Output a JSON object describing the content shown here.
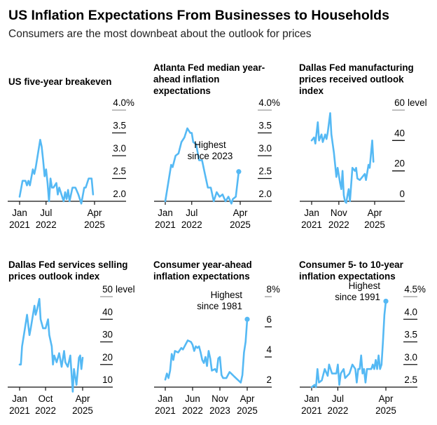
{
  "title": "US Inflation Expectations From Businesses to Households",
  "subtitle": "Consumers are the most downbeat about the outlook for prices",
  "line_color": "#55b9f4",
  "chart_data": [
    {
      "type": "line",
      "title_lines": [
        "US five-year breakeven"
      ],
      "yticks": [
        "2.0",
        "2.5",
        "3.0",
        "3.5",
        "4.0"
      ],
      "y_unit": "%",
      "ylim": [
        2.0,
        4.0
      ],
      "xticks": [
        {
          "date": "2021-01",
          "l1": "Jan",
          "l2": "2021"
        },
        {
          "date": "2022-07",
          "l1": "Jul",
          "l2": "2022"
        },
        {
          "date": "2025-04",
          "l1": "Apr",
          "l2": "2025"
        }
      ],
      "x": [
        "2021-01",
        "2021-03",
        "2021-05",
        "2021-06",
        "2021-07",
        "2021-08",
        "2021-10",
        "2021-11",
        "2021-12",
        "2022-03",
        "2022-04",
        "2022-05",
        "2022-06",
        "2022-07",
        "2022-08",
        "2022-09",
        "2022-10",
        "2022-11",
        "2022-12",
        "2023-02",
        "2023-03",
        "2023-04",
        "2023-06",
        "2023-07",
        "2023-08",
        "2023-09",
        "2023-10",
        "2023-11",
        "2024-01",
        "2024-03",
        "2024-05",
        "2024-06",
        "2024-07",
        "2024-09",
        "2024-10",
        "2024-11",
        "2024-12",
        "2025-02",
        "2025-03"
      ],
      "y": [
        2.1,
        2.45,
        2.45,
        2.35,
        2.45,
        2.35,
        2.7,
        2.6,
        2.75,
        3.35,
        3.2,
        2.9,
        2.55,
        2.7,
        2.4,
        2.0,
        2.5,
        2.3,
        2.3,
        2.4,
        2.15,
        2.3,
        2.1,
        2.0,
        2.2,
        2.05,
        2.25,
        2.0,
        2.3,
        2.3,
        2.15,
        2.05,
        1.95,
        2.3,
        2.3,
        2.4,
        2.5,
        2.5,
        2.15
      ]
    },
    {
      "type": "line",
      "title_lines": [
        "Atlanta Fed median year-",
        "ahead inflation",
        "expectations"
      ],
      "yticks": [
        "2.0",
        "2.5",
        "3.0",
        "3.5",
        "4.0"
      ],
      "y_unit": "%",
      "ylim": [
        2.0,
        4.0
      ],
      "xticks": [
        {
          "date": "2021-01",
          "l1": "Jan",
          "l2": "2021"
        },
        {
          "date": "2022-07",
          "l1": "Jul",
          "l2": "2022"
        },
        {
          "date": "2025-04",
          "l1": "Apr",
          "l2": "2025"
        }
      ],
      "x": [
        "2021-01",
        "2021-04",
        "2021-05",
        "2021-06",
        "2021-08",
        "2021-10",
        "2021-12",
        "2022-02",
        "2022-04",
        "2022-05",
        "2022-06",
        "2022-07",
        "2022-08",
        "2022-10",
        "2022-12",
        "2023-02",
        "2023-04",
        "2023-06",
        "2023-08",
        "2023-10",
        "2023-12",
        "2024-02",
        "2024-04",
        "2024-06",
        "2024-08",
        "2024-10",
        "2024-11",
        "2025-01",
        "2025-03"
      ],
      "y": [
        2.0,
        2.6,
        2.8,
        2.75,
        3.0,
        3.05,
        3.3,
        3.4,
        3.6,
        3.55,
        3.5,
        3.5,
        3.3,
        3.25,
        2.9,
        2.9,
        2.6,
        2.3,
        2.3,
        2.0,
        2.2,
        2.1,
        2.15,
        2.0,
        2.1,
        1.95,
        2.05,
        2.1,
        2.65
      ],
      "annotation": {
        "lines": [
          "Highest",
          "since 2023"
        ]
      }
    },
    {
      "type": "line",
      "title_lines": [
        "Dallas Fed manufacturing",
        "prices received outlook",
        "index"
      ],
      "yticks": [
        "0",
        "20",
        "40",
        "60"
      ],
      "y_unit": "level",
      "ylim": [
        0,
        60
      ],
      "xticks": [
        {
          "date": "2021-01",
          "l1": "Jan",
          "l2": "2021"
        },
        {
          "date": "2022-11",
          "l1": "Nov",
          "l2": "2022"
        },
        {
          "date": "2025-04",
          "l1": "Apr",
          "l2": "2025"
        }
      ],
      "x": [
        "2021-01",
        "2021-03",
        "2021-04",
        "2021-06",
        "2021-07",
        "2021-09",
        "2021-10",
        "2021-12",
        "2022-01",
        "2022-02",
        "2022-04",
        "2022-05",
        "2022-07",
        "2022-09",
        "2022-10",
        "2022-12",
        "2023-01",
        "2023-02",
        "2023-03",
        "2023-04",
        "2023-05",
        "2023-06",
        "2023-07",
        "2023-08",
        "2023-10",
        "2023-12",
        "2024-01",
        "2024-02",
        "2024-04",
        "2024-06",
        "2024-08",
        "2024-09",
        "2024-11",
        "2024-12",
        "2025-02",
        "2025-03"
      ],
      "y": [
        40,
        42,
        38,
        52,
        40,
        44,
        39,
        44,
        41,
        45,
        58,
        44,
        32,
        16,
        22,
        12,
        8,
        20,
        4,
        0,
        -1,
        4,
        8,
        0,
        22,
        20,
        22,
        15,
        14,
        16,
        18,
        14,
        24,
        22,
        40,
        26
      ]
    },
    {
      "type": "line",
      "title_lines": [
        "Dallas Fed services selling",
        "prices outlook index"
      ],
      "yticks": [
        "10",
        "20",
        "30",
        "40",
        "50"
      ],
      "y_unit": "level",
      "ylim": [
        10,
        50
      ],
      "xticks": [
        {
          "date": "2021-01",
          "l1": "Jan",
          "l2": "2021"
        },
        {
          "date": "2022-10",
          "l1": "Oct",
          "l2": "2022"
        },
        {
          "date": "2025-04",
          "l1": "Apr",
          "l2": "2025"
        }
      ],
      "x": [
        "2021-01",
        "2021-02",
        "2021-03",
        "2021-05",
        "2021-07",
        "2021-09",
        "2021-10",
        "2022-01",
        "2022-02",
        "2022-03",
        "2022-05",
        "2022-06",
        "2022-08",
        "2022-10",
        "2022-12",
        "2023-01",
        "2023-03",
        "2023-04",
        "2023-05",
        "2023-07",
        "2023-09",
        "2023-11",
        "2024-01",
        "2024-02",
        "2024-04",
        "2024-06",
        "2024-08",
        "2024-09",
        "2024-11",
        "2025-01",
        "2025-02",
        "2025-03",
        "2025-04"
      ],
      "y": [
        20,
        20,
        28,
        35,
        42,
        33,
        36,
        46,
        42,
        44,
        49,
        40,
        36,
        36,
        40,
        33,
        28,
        20,
        24,
        21,
        25,
        19,
        26,
        21,
        19,
        24,
        8,
        18,
        11,
        23,
        24,
        18,
        23
      ]
    },
    {
      "type": "line",
      "title_lines": [
        "Consumer year-ahead",
        "inflation expectations"
      ],
      "yticks": [
        "2",
        "4",
        "6",
        "8"
      ],
      "y_unit": "%",
      "ylim": [
        2,
        8
      ],
      "xticks": [
        {
          "date": "2021-01",
          "l1": "Jan",
          "l2": "2021"
        },
        {
          "date": "2022-06",
          "l1": "Jun",
          "l2": "2022"
        },
        {
          "date": "2023-11",
          "l1": "Nov",
          "l2": "2023"
        },
        {
          "date": "2025-04",
          "l1": "Apr",
          "l2": "2025"
        }
      ],
      "x": [
        "2021-01",
        "2021-02",
        "2021-03",
        "2021-04",
        "2021-05",
        "2021-06",
        "2021-07",
        "2021-09",
        "2021-11",
        "2021-12",
        "2022-02",
        "2022-03",
        "2022-05",
        "2022-06",
        "2022-07",
        "2022-08",
        "2022-09",
        "2022-10",
        "2022-11",
        "2022-12",
        "2023-01",
        "2023-02",
        "2023-03",
        "2023-04",
        "2023-05",
        "2023-06",
        "2023-08",
        "2023-09",
        "2023-10",
        "2023-11",
        "2023-12",
        "2024-01",
        "2024-03",
        "2024-05",
        "2024-06",
        "2024-08",
        "2024-10",
        "2024-12",
        "2025-01",
        "2025-02",
        "2025-03",
        "2025-04"
      ],
      "y": [
        2.5,
        2.9,
        2.6,
        3.1,
        4.2,
        3.8,
        4.4,
        4.3,
        4.6,
        4.5,
        4.9,
        5.1,
        5.0,
        4.8,
        4.4,
        4.7,
        4.6,
        4.7,
        4.3,
        3.8,
        3.6,
        4.0,
        3.4,
        4.4,
        3.9,
        3.1,
        3.2,
        3.0,
        3.9,
        4.0,
        2.8,
        2.6,
        2.6,
        3.0,
        2.9,
        2.7,
        2.5,
        2.3,
        2.8,
        4.3,
        5.0,
        6.5
      ],
      "annotation": {
        "lines": [
          "Highest",
          "since 1981"
        ]
      }
    },
    {
      "type": "line",
      "title_lines": [
        "Consumer 5- to 10-year",
        "inflation expectations"
      ],
      "yticks": [
        "2.5",
        "3.0",
        "3.5",
        "4.0",
        "4.5"
      ],
      "y_unit": "%",
      "ylim": [
        2.5,
        4.5
      ],
      "xticks": [
        {
          "date": "2021-01",
          "l1": "Jan",
          "l2": "2021"
        },
        {
          "date": "2022-07",
          "l1": "Jul",
          "l2": "2022"
        },
        {
          "date": "2025-04",
          "l1": "Apr",
          "l2": "2025"
        }
      ],
      "x": [
        "2021-01",
        "2021-03",
        "2021-04",
        "2021-05",
        "2021-06",
        "2021-08",
        "2021-10",
        "2021-12",
        "2022-01",
        "2022-03",
        "2022-06",
        "2022-07",
        "2022-08",
        "2022-09",
        "2022-11",
        "2022-12",
        "2023-03",
        "2023-05",
        "2023-07",
        "2023-08",
        "2023-09",
        "2023-10",
        "2023-11",
        "2023-12",
        "2024-01",
        "2024-02",
        "2024-03",
        "2024-06",
        "2024-07",
        "2024-08",
        "2024-09",
        "2024-10",
        "2024-11",
        "2024-12",
        "2025-01",
        "2025-02",
        "2025-03",
        "2025-04"
      ],
      "y": [
        2.5,
        2.55,
        2.5,
        2.9,
        2.6,
        2.65,
        2.9,
        2.75,
        3.0,
        2.8,
        2.8,
        3.0,
        2.55,
        2.8,
        2.9,
        2.7,
        2.8,
        3.0,
        2.9,
        2.6,
        2.9,
        2.9,
        3.2,
        2.8,
        2.9,
        2.6,
        2.9,
        2.9,
        3.0,
        2.9,
        3.1,
        2.9,
        3.2,
        2.9,
        3.0,
        3.5,
        4.1,
        4.4
      ],
      "annotation": {
        "lines": [
          "Highest",
          "since 1991"
        ]
      }
    }
  ]
}
